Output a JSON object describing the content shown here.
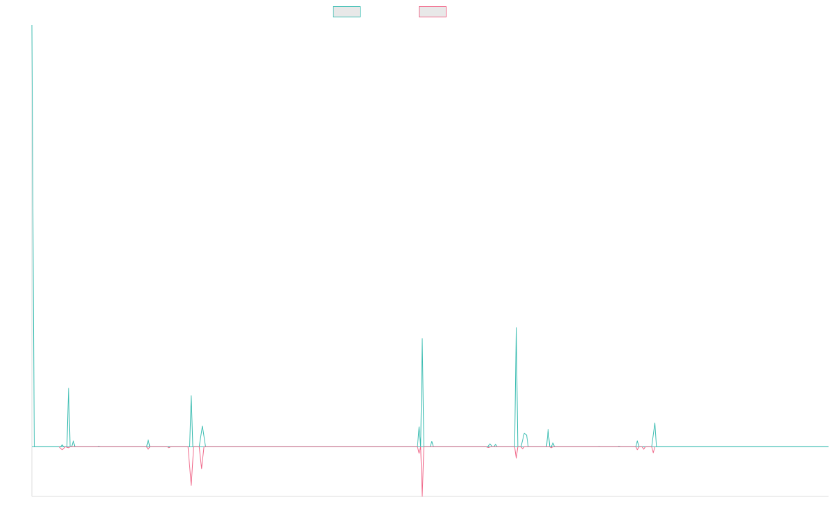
{
  "chart_data": {
    "type": "line",
    "title": "",
    "xlabel": "",
    "ylabel": "",
    "legend_position": "top-center",
    "grid": false,
    "xlim": [
      0,
      100
    ],
    "ylim": [
      -10,
      85
    ],
    "colors": {
      "series_a": "#3dbdb2",
      "series_b": "#f06a8b",
      "axis": "#dddddd",
      "legend_fill": "#e8e8e8"
    },
    "series": [
      {
        "key": "a",
        "points": [
          [
            0,
            85
          ],
          [
            0.3,
            0
          ],
          [
            3.6,
            0
          ],
          [
            3.8,
            0.4
          ],
          [
            4.0,
            0
          ],
          [
            4.4,
            0
          ],
          [
            4.6,
            11.8
          ],
          [
            4.8,
            0
          ],
          [
            5.0,
            0
          ],
          [
            5.2,
            1.2
          ],
          [
            5.4,
            0
          ],
          [
            8.2,
            0
          ],
          [
            8.4,
            0.1
          ],
          [
            8.6,
            0
          ],
          [
            14.4,
            0
          ],
          [
            14.6,
            1.4
          ],
          [
            14.8,
            0
          ],
          [
            17.0,
            0
          ],
          [
            17.2,
            0.05
          ],
          [
            17.4,
            0
          ],
          [
            19.8,
            0
          ],
          [
            20.0,
            10.3
          ],
          [
            20.2,
            0
          ],
          [
            21.0,
            0
          ],
          [
            21.4,
            4.2
          ],
          [
            21.8,
            0
          ],
          [
            48.4,
            0
          ],
          [
            48.6,
            4.0
          ],
          [
            48.8,
            0
          ],
          [
            49.0,
            21.8
          ],
          [
            49.2,
            0
          ],
          [
            50.0,
            0
          ],
          [
            50.2,
            1.1
          ],
          [
            50.4,
            0
          ],
          [
            57.2,
            0
          ],
          [
            57.5,
            0.6
          ],
          [
            57.8,
            0
          ],
          [
            58.0,
            0
          ],
          [
            58.2,
            0.5
          ],
          [
            58.4,
            0
          ],
          [
            60.6,
            0
          ],
          [
            60.8,
            24.0
          ],
          [
            61.0,
            0
          ],
          [
            61.4,
            0
          ],
          [
            61.8,
            2.7
          ],
          [
            62.1,
            2.4
          ],
          [
            62.3,
            0
          ],
          [
            64.6,
            0
          ],
          [
            64.8,
            3.5
          ],
          [
            65.0,
            0
          ],
          [
            65.2,
            0
          ],
          [
            65.4,
            0.8
          ],
          [
            65.6,
            0
          ],
          [
            71.0,
            0
          ],
          [
            71.2,
            0.05
          ],
          [
            71.4,
            0
          ],
          [
            73.5,
            0
          ],
          [
            73.7,
            0.1
          ],
          [
            73.9,
            0
          ],
          [
            75.8,
            0
          ],
          [
            76.0,
            1.2
          ],
          [
            76.2,
            0
          ],
          [
            77.8,
            0
          ],
          [
            78.2,
            4.8
          ],
          [
            78.4,
            0
          ],
          [
            100,
            0
          ]
        ]
      },
      {
        "key": "b",
        "points": [
          [
            3.4,
            0
          ],
          [
            3.8,
            -0.6
          ],
          [
            4.2,
            0
          ],
          [
            4.6,
            -0.2
          ],
          [
            4.8,
            0
          ],
          [
            14.4,
            0
          ],
          [
            14.6,
            -0.5
          ],
          [
            14.8,
            0
          ],
          [
            17.0,
            0
          ],
          [
            17.2,
            -0.2
          ],
          [
            17.4,
            0
          ],
          [
            19.6,
            0
          ],
          [
            20.0,
            -7.8
          ],
          [
            20.3,
            0
          ],
          [
            21.0,
            0
          ],
          [
            21.3,
            -4.4
          ],
          [
            21.6,
            0
          ],
          [
            48.4,
            0
          ],
          [
            48.6,
            -1.3
          ],
          [
            48.8,
            0
          ],
          [
            49.0,
            -10.0
          ],
          [
            49.2,
            0
          ],
          [
            57.0,
            0
          ],
          [
            57.3,
            -0.15
          ],
          [
            57.6,
            0
          ],
          [
            60.6,
            0
          ],
          [
            60.8,
            -2.3
          ],
          [
            61.0,
            0
          ],
          [
            61.4,
            0
          ],
          [
            61.6,
            -0.4
          ],
          [
            61.8,
            0
          ],
          [
            65.0,
            0
          ],
          [
            65.2,
            -0.2
          ],
          [
            65.4,
            0
          ],
          [
            75.8,
            0
          ],
          [
            76.0,
            -0.6
          ],
          [
            76.2,
            0
          ],
          [
            76.6,
            0
          ],
          [
            76.8,
            -0.5
          ],
          [
            77.0,
            0
          ],
          [
            77.8,
            0
          ],
          [
            78.0,
            -1.2
          ],
          [
            78.2,
            0
          ]
        ]
      }
    ]
  }
}
